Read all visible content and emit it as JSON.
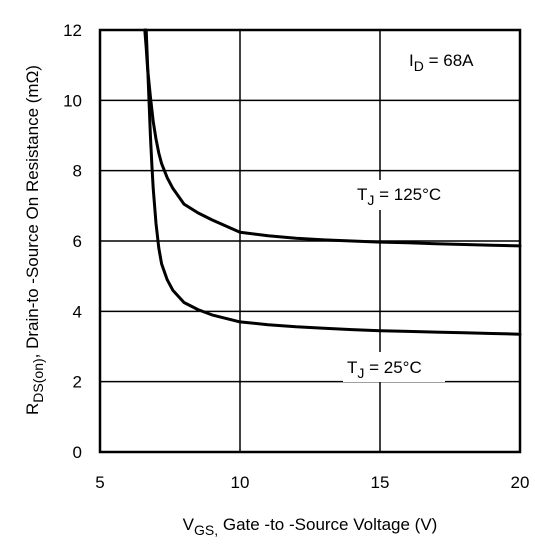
{
  "chart_data": {
    "type": "line",
    "xlabel": {
      "symbol": "V",
      "subscript": "GS,",
      "text": " Gate -to -Source Voltage  (V)"
    },
    "ylabel": {
      "symbol": "R",
      "subscript": "DS(on)",
      "text": ",   Drain-to -Source On Resistance (mΩ)"
    },
    "xlim": [
      5,
      20
    ],
    "ylim": [
      0,
      12
    ],
    "xticks": [
      5,
      10,
      15,
      20
    ],
    "yticks": [
      0,
      2,
      4,
      6,
      8,
      10,
      12
    ],
    "grid": true,
    "annotations": [
      {
        "symbol": "I",
        "subscript": "D",
        "text": " = 68A"
      }
    ],
    "series": [
      {
        "name": "T_J = 125°C",
        "label": {
          "symbol": "T",
          "subscript": "J",
          "text": " = 125°C"
        },
        "x": [
          6.6,
          6.65,
          6.7,
          6.8,
          6.9,
          7.0,
          7.1,
          7.2,
          7.4,
          7.6,
          8.0,
          8.5,
          9.0,
          10.0,
          11.0,
          12.0,
          13.0,
          14.0,
          15.0,
          16.0,
          17.0,
          18.0,
          19.0,
          20.0
        ],
        "y": [
          12.0,
          11.5,
          10.9,
          10.1,
          9.4,
          8.9,
          8.5,
          8.2,
          7.8,
          7.5,
          7.05,
          6.8,
          6.6,
          6.25,
          6.15,
          6.08,
          6.03,
          6.0,
          5.97,
          5.95,
          5.92,
          5.9,
          5.88,
          5.86
        ]
      },
      {
        "name": "T_J = 25°C",
        "label": {
          "symbol": "T",
          "subscript": "J",
          "text": " = 25°C"
        },
        "x": [
          6.65,
          6.7,
          6.75,
          6.8,
          6.85,
          6.9,
          7.0,
          7.1,
          7.2,
          7.4,
          7.6,
          8.0,
          8.5,
          9.0,
          10.0,
          11.0,
          12.0,
          13.0,
          14.0,
          15.0,
          16.0,
          17.0,
          18.0,
          19.0,
          20.0
        ],
        "y": [
          12.0,
          11.0,
          10.0,
          9.0,
          8.2,
          7.5,
          6.5,
          5.8,
          5.35,
          4.9,
          4.6,
          4.25,
          4.05,
          3.9,
          3.7,
          3.62,
          3.56,
          3.52,
          3.48,
          3.45,
          3.43,
          3.41,
          3.39,
          3.37,
          3.35
        ]
      }
    ]
  },
  "colors": {
    "line": "#000000",
    "grid": "#000000",
    "background": "#ffffff"
  }
}
